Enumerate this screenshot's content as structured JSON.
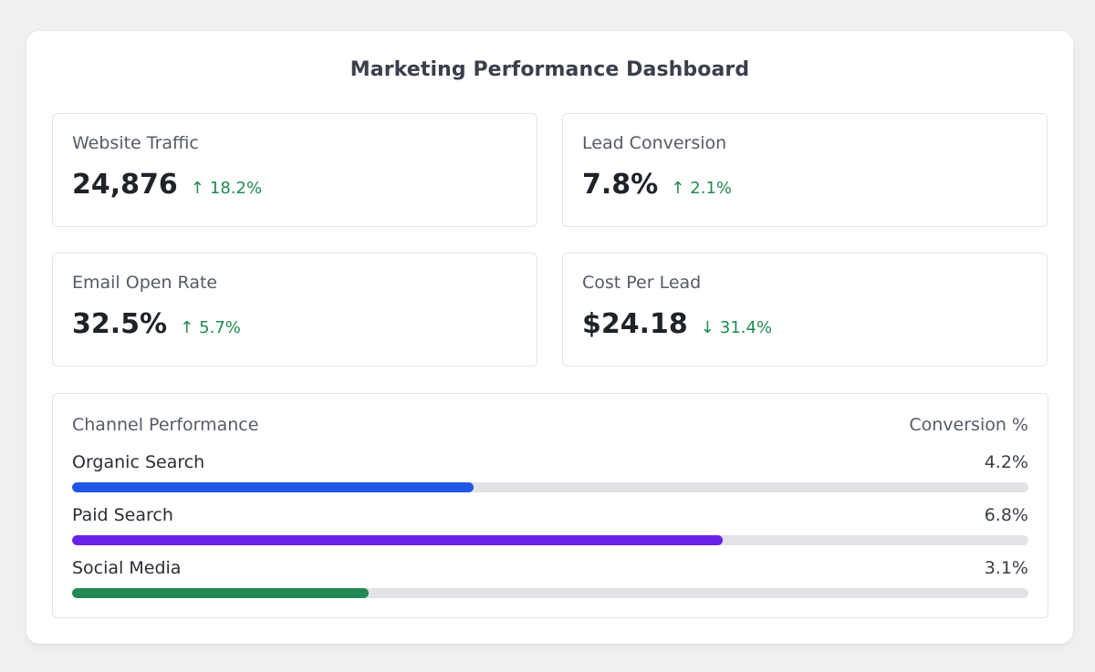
{
  "dashboard": {
    "title": "Marketing Performance Dashboard"
  },
  "metrics": [
    {
      "label": "Website Traffic",
      "value": "24,876",
      "change": "18.2%",
      "direction": "up",
      "arrow": "↑"
    },
    {
      "label": "Lead Conversion",
      "value": "7.8%",
      "change": "2.1%",
      "direction": "up",
      "arrow": "↑"
    },
    {
      "label": "Email Open Rate",
      "value": "32.5%",
      "change": "5.7%",
      "direction": "up",
      "arrow": "↑"
    },
    {
      "label": "Cost Per Lead",
      "value": "$24.18",
      "change": "31.4%",
      "direction": "down",
      "arrow": "↓"
    }
  ],
  "channels": {
    "title": "Channel Performance",
    "column_label": "Conversion %",
    "items": [
      {
        "name": "Organic Search",
        "value": "4.2%",
        "fill_fraction": 0.42,
        "color": "#1f57e6"
      },
      {
        "name": "Paid Search",
        "value": "6.8%",
        "fill_fraction": 0.68,
        "color": "#6b21e8"
      },
      {
        "name": "Social Media",
        "value": "3.1%",
        "fill_fraction": 0.31,
        "color": "#238a55"
      }
    ]
  },
  "colors": {
    "positive_change": "#1e8a4e",
    "background": "#eff0f2",
    "card": "#ffffff"
  }
}
